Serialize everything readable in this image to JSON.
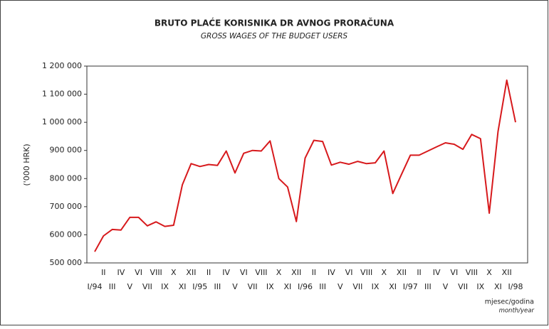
{
  "chart_data": {
    "type": "line",
    "title": "BRUTO PLAĆE KORISNIKA DR AVNOG PRORAČUNA",
    "subtitle": "GROSS WAGES OF THE BUDGET USERS",
    "y_label": "('000 HRK)",
    "x_label": "mjesec/godina",
    "x_label_en": "month/year",
    "categories": [
      "I/94",
      "II",
      "III",
      "IV",
      "V",
      "VI",
      "VII",
      "VIII",
      "IX",
      "X",
      "XI",
      "XII",
      "I/95",
      "II",
      "III",
      "IV",
      "V",
      "VI",
      "VII",
      "VIII",
      "IX",
      "X",
      "XI",
      "XII",
      "I/96",
      "II",
      "III",
      "IV",
      "V",
      "VI",
      "VII",
      "VIII",
      "IX",
      "X",
      "XI",
      "XII",
      "I/97",
      "II",
      "III",
      "IV",
      "V",
      "VI",
      "VII",
      "VIII",
      "IX",
      "X",
      "XI",
      "XII",
      "I/98"
    ],
    "series": [
      {
        "name": "Gross wages",
        "color": "#d7191c",
        "values": [
          540000,
          596000,
          619000,
          617000,
          662000,
          662000,
          632000,
          646000,
          630000,
          634000,
          778000,
          853000,
          843000,
          850000,
          847000,
          898000,
          820000,
          890000,
          900000,
          898000,
          934000,
          800000,
          770000,
          647000,
          873000,
          936000,
          932000,
          848000,
          858000,
          851000,
          861000,
          853000,
          856000,
          898000,
          747000,
          815000,
          883000,
          883000,
          898000,
          913000,
          927000,
          922000,
          904000,
          957000,
          942000,
          677000,
          967000,
          1150000,
          1000000
        ]
      }
    ],
    "ylim": [
      500000,
      1200000
    ],
    "yticks": [
      {
        "value": 500000,
        "label": "500 000"
      },
      {
        "value": 600000,
        "label": "600 000"
      },
      {
        "value": 700000,
        "label": "700 000"
      },
      {
        "value": 800000,
        "label": "800 000"
      },
      {
        "value": 900000,
        "label": "900 000"
      },
      {
        "value": 1000000,
        "label": "1 000 000"
      },
      {
        "value": 1100000,
        "label": "1 100 000"
      },
      {
        "value": 1200000,
        "label": "1 200 000"
      }
    ]
  }
}
